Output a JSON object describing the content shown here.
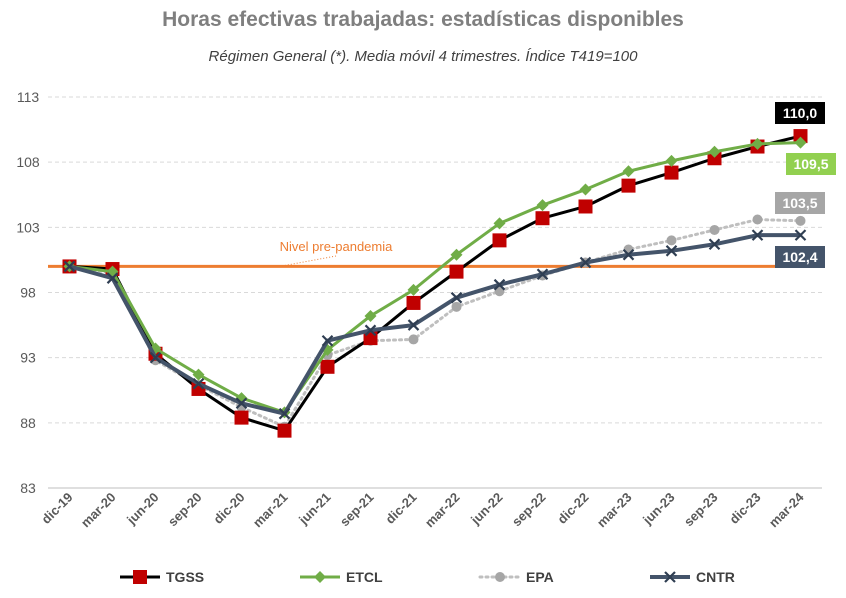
{
  "chart_data": {
    "type": "line",
    "title": "Horas efectivas trabajadas: estadísticas disponibles",
    "subtitle": "Régimen General (*). Media móvil 4 trimestres. Índice T419=100",
    "categories": [
      "dic-19",
      "mar-20",
      "jun-20",
      "sep-20",
      "dic-20",
      "mar-21",
      "jun-21",
      "sep-21",
      "dic-21",
      "mar-22",
      "jun-22",
      "sep-22",
      "dic-22",
      "mar-23",
      "jun-23",
      "sep-23",
      "dic-23",
      "mar-24"
    ],
    "yticks": [
      83,
      88,
      93,
      98,
      103,
      108,
      113
    ],
    "ylim": [
      83,
      113
    ],
    "grid": true,
    "legend_position": "bottom",
    "reference_line": {
      "value": 100,
      "label": "Nivel pre-pandemia",
      "color": "#ed7d31"
    },
    "series": [
      {
        "name": "TGSS",
        "color": "#000000",
        "marker": "square",
        "marker_color": "#c00000",
        "dash": "solid",
        "values": [
          100.0,
          99.8,
          93.3,
          90.6,
          88.4,
          87.4,
          92.3,
          94.5,
          97.2,
          99.6,
          102.0,
          103.7,
          104.6,
          106.2,
          107.2,
          108.3,
          109.2,
          110.0
        ],
        "end_label": "110,0",
        "end_label_bg": "#000000",
        "end_label_fg": "#ffffff"
      },
      {
        "name": "ETCL",
        "color": "#70ad47",
        "marker": "diamond",
        "marker_color": "#70ad47",
        "dash": "solid",
        "values": [
          100.0,
          99.6,
          93.7,
          91.7,
          89.9,
          88.8,
          93.6,
          96.2,
          98.2,
          100.9,
          103.3,
          104.7,
          105.9,
          107.3,
          108.1,
          108.8,
          109.4,
          109.5
        ],
        "end_label": "109,5",
        "end_label_bg": "#92d050",
        "end_label_fg": "#ffffff"
      },
      {
        "name": "EPA",
        "color": "#bfbfbf",
        "marker": "circle",
        "marker_color": "#a6a6a6",
        "dash": "dotted",
        "values": [
          100.0,
          99.5,
          92.8,
          90.9,
          89.2,
          87.7,
          93.2,
          94.3,
          94.4,
          96.9,
          98.1,
          99.3,
          100.3,
          101.3,
          102.0,
          102.8,
          103.6,
          103.5
        ],
        "end_label": "103,5",
        "end_label_bg": "#a6a6a6",
        "end_label_fg": "#ffffff"
      },
      {
        "name": "CNTR",
        "color": "#44546a",
        "marker": "x",
        "marker_color": "#2f3e52",
        "dash": "solid",
        "values": [
          100.0,
          99.1,
          93.0,
          91.0,
          89.5,
          88.7,
          94.3,
          95.1,
          95.5,
          97.6,
          98.6,
          99.4,
          100.3,
          100.9,
          101.2,
          101.7,
          102.4,
          102.4
        ],
        "end_label": "102,4",
        "end_label_bg": "#44546a",
        "end_label_fg": "#ffffff"
      }
    ]
  }
}
